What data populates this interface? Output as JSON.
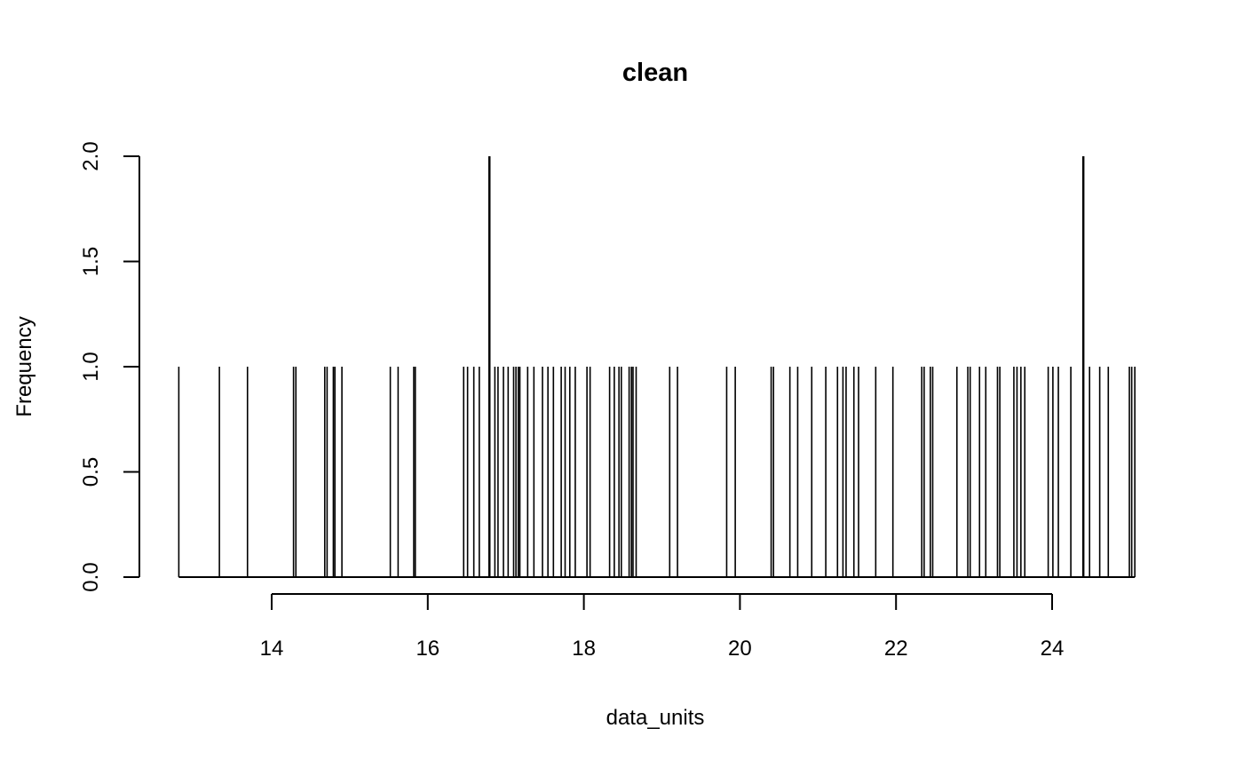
{
  "chart_data": {
    "type": "bar",
    "title": "clean",
    "xlabel": "data_units",
    "ylabel": "Frequency",
    "xlim": [
      12.6,
      25.2
    ],
    "ylim": [
      0,
      2
    ],
    "xticks": [
      14,
      16,
      18,
      20,
      22,
      24
    ],
    "xtick_labels": [
      "14",
      "16",
      "18",
      "20",
      "22",
      "24"
    ],
    "yticks": [
      0,
      0.5,
      1,
      1.5,
      2
    ],
    "ytick_labels": [
      "0.0",
      "0.5",
      "1.0",
      "1.5",
      "2.0"
    ],
    "grid": false,
    "bar_color": "#000000",
    "x": [
      12.81,
      13.33,
      13.69,
      14.28,
      14.31,
      14.68,
      14.71,
      14.79,
      14.81,
      14.9,
      15.52,
      15.62,
      15.82,
      15.84,
      16.46,
      16.51,
      16.59,
      16.66,
      16.79,
      16.86,
      16.9,
      16.97,
      17.03,
      17.1,
      17.13,
      17.16,
      17.18,
      17.28,
      17.36,
      17.47,
      17.54,
      17.61,
      17.71,
      17.76,
      17.82,
      17.89,
      18.04,
      18.08,
      18.33,
      18.39,
      18.45,
      18.48,
      18.58,
      18.61,
      18.63,
      18.67,
      19.1,
      19.2,
      19.83,
      19.94,
      20.4,
      20.43,
      20.64,
      20.74,
      20.92,
      21.1,
      21.25,
      21.32,
      21.36,
      21.46,
      21.52,
      21.74,
      21.96,
      22.33,
      22.36,
      22.44,
      22.47,
      22.78,
      22.92,
      22.95,
      23.07,
      23.15,
      23.3,
      23.33,
      23.51,
      23.55,
      23.6,
      23.65,
      23.95,
      24.01,
      24.08,
      24.24,
      24.4,
      24.48,
      24.61,
      24.72,
      24.99,
      25.02,
      25.06
    ],
    "values": [
      1,
      1,
      1,
      1,
      1,
      1,
      1,
      1,
      1,
      1,
      1,
      1,
      1,
      1,
      1,
      1,
      1,
      1,
      2,
      1,
      1,
      1,
      1,
      1,
      1,
      1,
      1,
      1,
      1,
      1,
      1,
      1,
      1,
      1,
      1,
      1,
      1,
      1,
      1,
      1,
      1,
      1,
      1,
      1,
      1,
      1,
      1,
      1,
      1,
      1,
      1,
      1,
      1,
      1,
      1,
      1,
      1,
      1,
      1,
      1,
      1,
      1,
      1,
      1,
      1,
      1,
      1,
      1,
      1,
      1,
      1,
      1,
      1,
      1,
      1,
      1,
      1,
      1,
      1,
      1,
      1,
      1,
      2,
      1,
      1,
      1,
      1,
      1,
      1
    ]
  }
}
